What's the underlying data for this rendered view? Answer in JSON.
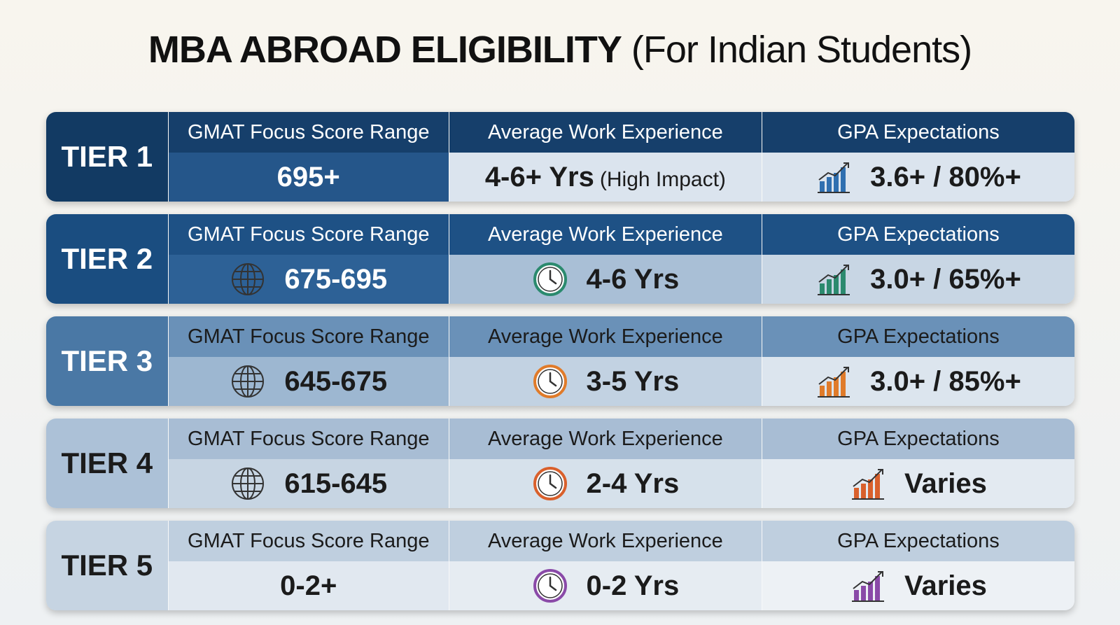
{
  "title": {
    "main": "MBA ABROAD ELIGIBILITY",
    "sub": "(For Indian Students)"
  },
  "tiers": [
    {
      "label": "TIER 1",
      "columns": [
        {
          "header": "GMAT Focus Score Range",
          "value": "695+"
        },
        {
          "header": "Average Work Experience",
          "value": "4-6+ Yrs",
          "note": "(High Impact)"
        },
        {
          "header": "GPA Expectations",
          "value": "3.6+ / 80%+"
        }
      ]
    },
    {
      "label": "TIER 2",
      "columns": [
        {
          "header": "GMAT Focus Score Range",
          "value": "675-695"
        },
        {
          "header": "Average Work Experience",
          "value": "4-6 Yrs"
        },
        {
          "header": "GPA Expectations",
          "value": "3.0+ / 65%+"
        }
      ]
    },
    {
      "label": "TIER 3",
      "columns": [
        {
          "header": "GMAT Focus Score Range",
          "value": "645-675"
        },
        {
          "header": "Average Work Experience",
          "value": "3-5 Yrs"
        },
        {
          "header": "GPA Expectations",
          "value": "3.0+ / 85%+"
        }
      ]
    },
    {
      "label": "TIER 4",
      "columns": [
        {
          "header": "GMAT Focus Score Range",
          "value": "615-645"
        },
        {
          "header": "Average Work Experience",
          "value": "2-4 Yrs"
        },
        {
          "header": "GPA Expectations",
          "value": "Varies"
        }
      ]
    },
    {
      "label": "TIER 5",
      "columns": [
        {
          "header": "GMAT Focus Score Range",
          "value": "0-2+"
        },
        {
          "header": "Average Work Experience",
          "value": "0-2 Yrs"
        },
        {
          "header": "GPA Expectations",
          "value": "Varies"
        }
      ]
    }
  ]
}
